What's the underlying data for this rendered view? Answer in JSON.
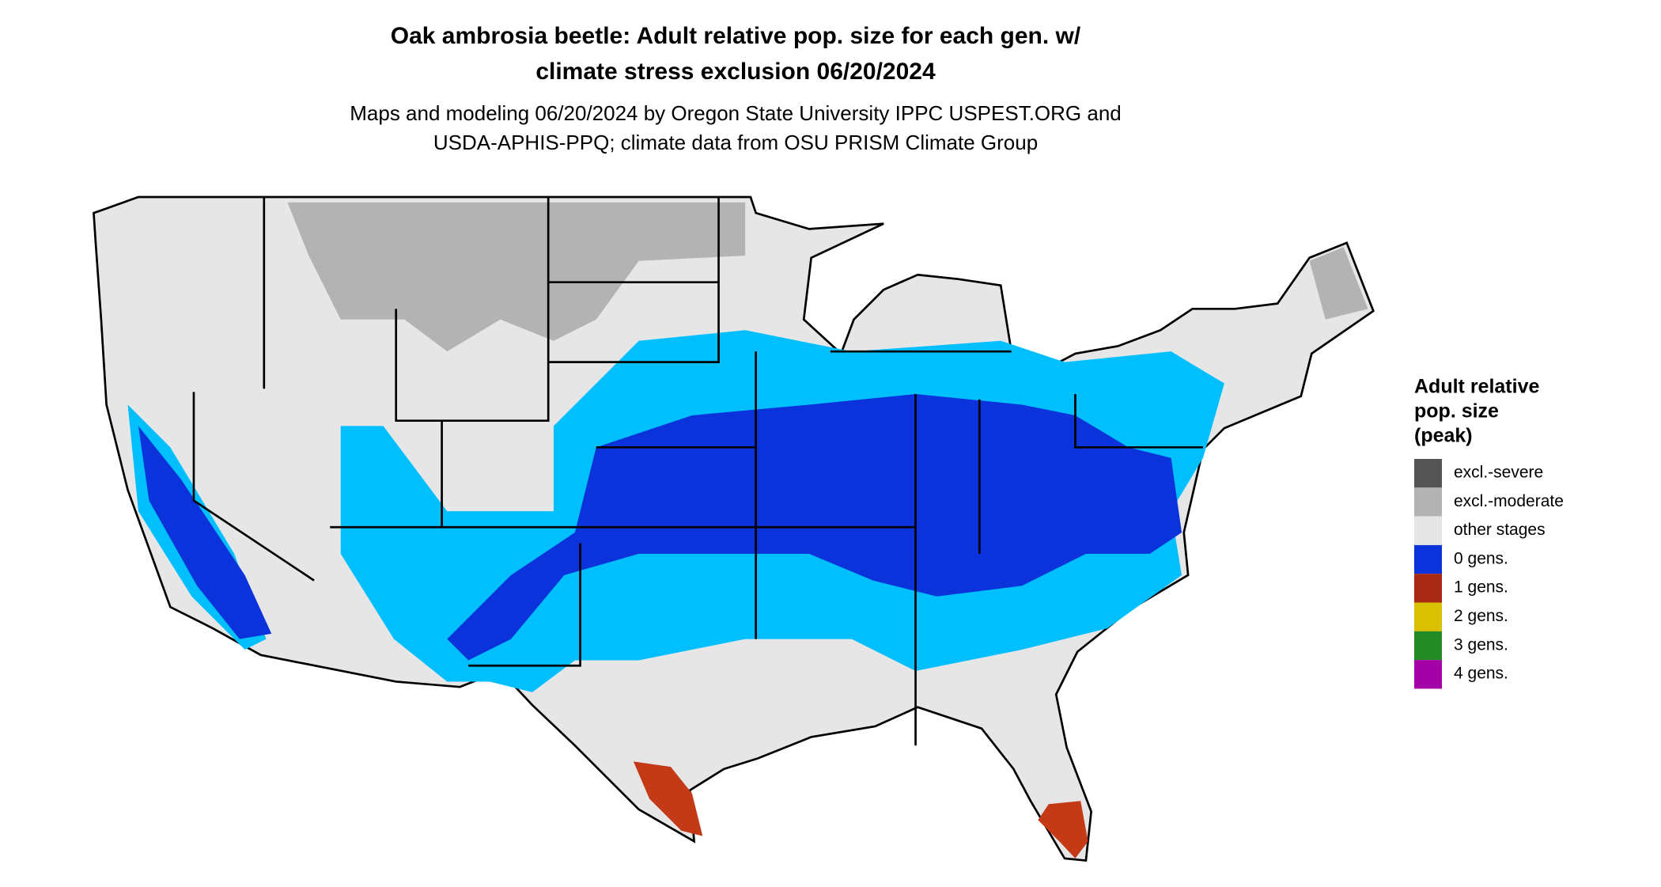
{
  "title": [
    "Oak ambrosia beetle: Adult relative pop. size for each gen. w/",
    "climate stress exclusion 06/20/2024"
  ],
  "subtitle": [
    "Maps and modeling 06/20/2024 by Oregon State University IPPC USPEST.ORG and",
    "USDA-APHIS-PPQ; climate data from OSU PRISM Climate Group"
  ],
  "legend": {
    "title": [
      "Adult relative",
      "pop. size",
      "(peak)"
    ],
    "items": [
      {
        "label": "excl.-severe",
        "color": "#555555"
      },
      {
        "label": "excl.-moderate",
        "color": "#b3b3b3"
      },
      {
        "label": "other stages",
        "color": "#e6e6e6"
      },
      {
        "label": "0 gens.",
        "color": "#0a33dc"
      },
      {
        "label": "1 gens.",
        "color": "#a82a14"
      },
      {
        "label": "2 gens.",
        "color": "#d9c000"
      },
      {
        "label": "3 gens.",
        "color": "#238b23"
      },
      {
        "label": "4 gens.",
        "color": "#a300a8"
      }
    ]
  }
}
